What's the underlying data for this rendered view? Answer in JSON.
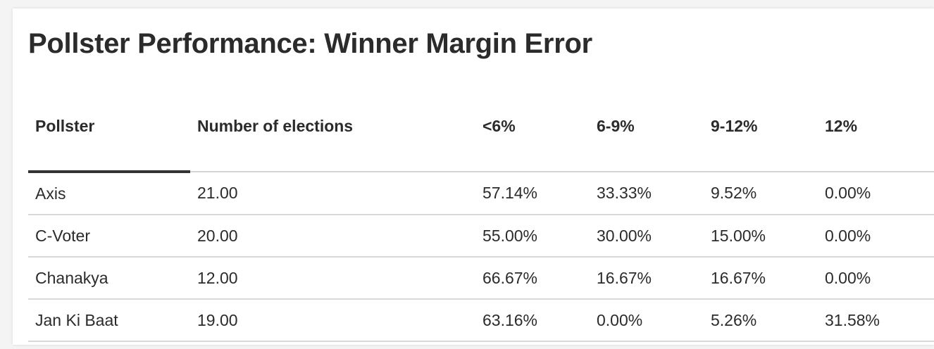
{
  "chart_data": {
    "type": "table",
    "title": "Pollster Performance: Winner Margin Error",
    "columns": [
      "Pollster",
      "Number of elections",
      "<6%",
      "6-9%",
      "9-12%",
      "12%"
    ],
    "rows": [
      [
        "Axis",
        "21.00",
        "57.14%",
        "33.33%",
        "9.52%",
        "0.00%"
      ],
      [
        "C-Voter",
        "20.00",
        "55.00%",
        "30.00%",
        "15.00%",
        "0.00%"
      ],
      [
        "Chanakya",
        "12.00",
        "66.67%",
        "16.67%",
        "16.67%",
        "0.00%"
      ],
      [
        "Jan Ki Baat",
        "19.00",
        "63.16%",
        "0.00%",
        "5.26%",
        "31.58%"
      ]
    ],
    "sorted_column": "Pollster"
  }
}
